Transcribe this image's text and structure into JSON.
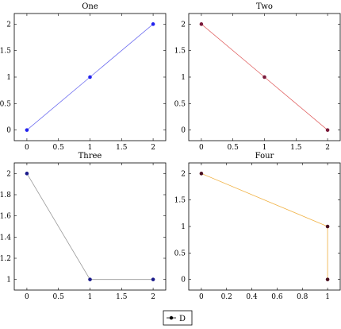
{
  "chart_data": [
    {
      "type": "line",
      "title": "One",
      "x": [
        0,
        1,
        2
      ],
      "series": [
        {
          "values": [
            0,
            1,
            2
          ],
          "color": "#2222ee",
          "line_color": "#6f6ff0"
        }
      ],
      "xlim": [
        -0.2,
        2.2
      ],
      "ylim": [
        -0.2,
        2.2
      ],
      "xticks": [
        0,
        0.5,
        1,
        1.5,
        2
      ],
      "xtick_labels": [
        "0",
        "0.5",
        "1",
        "1.5",
        "2"
      ],
      "yticks": [
        0,
        0.5,
        1,
        1.5,
        2
      ],
      "ytick_labels": [
        "0",
        "0.5",
        "1",
        "1.5",
        "2"
      ]
    },
    {
      "type": "line",
      "title": "Two",
      "x": [
        0,
        1,
        2
      ],
      "series": [
        {
          "values": [
            2,
            1,
            0
          ],
          "color": "#7a1a3a",
          "line_color": "#e06060"
        }
      ],
      "xlim": [
        -0.2,
        2.2
      ],
      "ylim": [
        -0.2,
        2.2
      ],
      "xticks": [
        0,
        0.5,
        1,
        1.5,
        2
      ],
      "xtick_labels": [
        "0",
        "0.5",
        "1",
        "1.5",
        "2"
      ],
      "yticks": [
        0,
        0.5,
        1,
        1.5,
        2
      ],
      "ytick_labels": [
        "0",
        "0.5",
        "1",
        "1.5",
        "2"
      ]
    },
    {
      "type": "line",
      "title": "Three",
      "x": [
        0,
        1,
        2
      ],
      "series": [
        {
          "values": [
            2,
            1,
            1
          ],
          "color": "#1a1a8a",
          "line_color": "#999999"
        }
      ],
      "xlim": [
        -0.2,
        2.2
      ],
      "ylim": [
        0.9,
        2.1
      ],
      "xticks": [
        0,
        0.5,
        1,
        1.5,
        2
      ],
      "xtick_labels": [
        "0",
        "0.5",
        "1",
        "1.5",
        "2"
      ],
      "yticks": [
        1,
        1.2,
        1.4,
        1.6,
        1.8,
        2
      ],
      "ytick_labels": [
        "1",
        "1.2",
        "1.4",
        "1.6",
        "1.8",
        "2"
      ]
    },
    {
      "type": "line",
      "title": "Four",
      "x": [
        0,
        1,
        1
      ],
      "series": [
        {
          "values": [
            2,
            1,
            0
          ],
          "color": "#4a1020",
          "line_color": "#f0b040"
        }
      ],
      "xlim": [
        -0.1,
        1.1
      ],
      "ylim": [
        -0.2,
        2.2
      ],
      "xticks": [
        0,
        0.2,
        0.4,
        0.6,
        0.8,
        1
      ],
      "xtick_labels": [
        "0",
        "0.2",
        "0.4",
        "0.6",
        "0.8",
        "1"
      ],
      "yticks": [
        0,
        0.5,
        1,
        1.5,
        2
      ],
      "ytick_labels": [
        "0",
        "0.5",
        "1",
        "1.5",
        "2"
      ]
    }
  ],
  "legend": {
    "label": "D",
    "placement": "bottom-center",
    "marker_color": "#000000"
  }
}
